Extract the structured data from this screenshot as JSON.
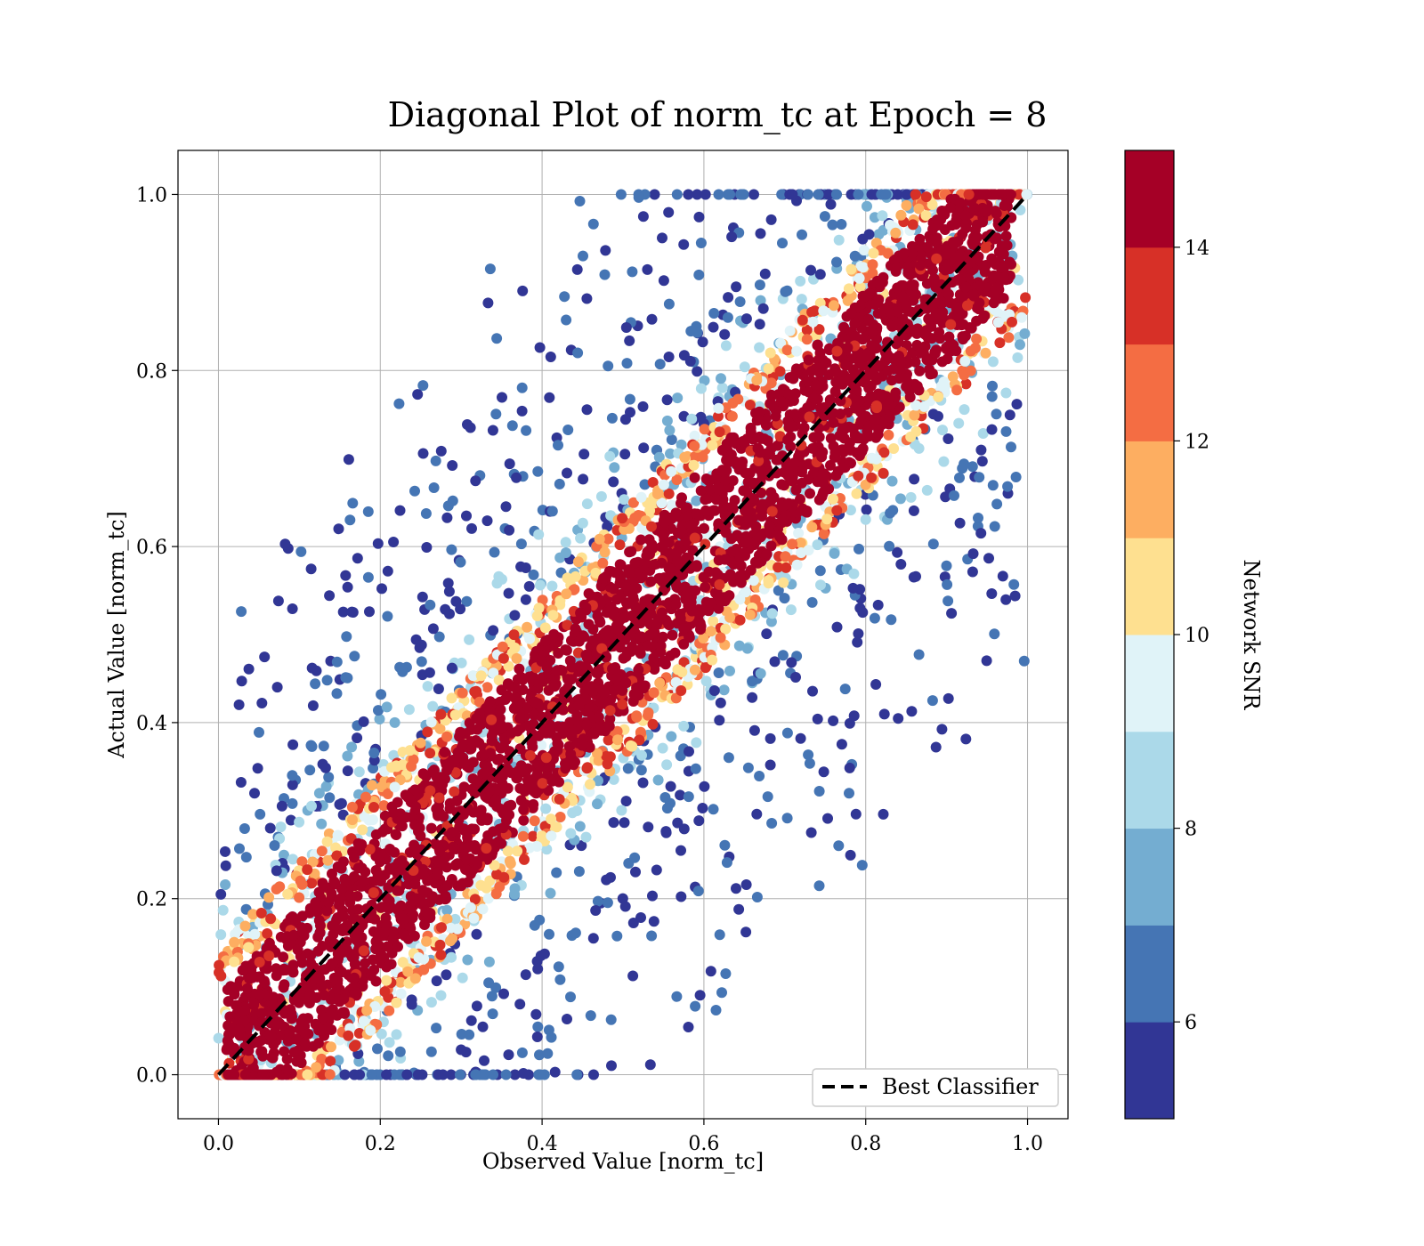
{
  "chart_data": {
    "type": "scatter",
    "title": "Diagonal Plot of norm_tc at Epoch = 8",
    "xlabel": "Observed Value [norm_tc]",
    "ylabel": "Actual Value [norm_tc]",
    "xlim": [
      -0.05,
      1.05
    ],
    "ylim": [
      -0.05,
      1.05
    ],
    "x_ticks": [
      "0.0",
      "0.2",
      "0.4",
      "0.6",
      "0.8",
      "1.0"
    ],
    "y_ticks": [
      "0.0",
      "0.2",
      "0.4",
      "0.6",
      "0.8",
      "1.0"
    ],
    "grid": true,
    "legend": {
      "position": "bottom-right",
      "entries": [
        "Best Classifier"
      ]
    },
    "reference_line": {
      "name": "Best Classifier",
      "style": "dashed",
      "color": "#000000",
      "x": [
        0,
        1
      ],
      "y": [
        0,
        1
      ]
    },
    "colorbar": {
      "label": "Network SNR",
      "min": 5,
      "max": 15,
      "ticks": [
        "6",
        "8",
        "10",
        "12",
        "14"
      ],
      "tick_values": [
        6,
        8,
        10,
        12,
        14
      ],
      "colors": [
        "#313695",
        "#4575b4",
        "#74add1",
        "#abd9e9",
        "#e0f3f8",
        "#fee090",
        "#fdae61",
        "#f46d43",
        "#d73027",
        "#a50026"
      ]
    },
    "distribution": {
      "description_points": [
        {
          "x": 0.0,
          "y": 0.0
        },
        {
          "x": 0.5,
          "y": 0.5
        },
        {
          "x": 1.0,
          "y": 1.0
        }
      ],
      "high_snr_band_halfwidth": 0.09,
      "low_snr_spread": "wide scatter away from the diagonal"
    }
  }
}
